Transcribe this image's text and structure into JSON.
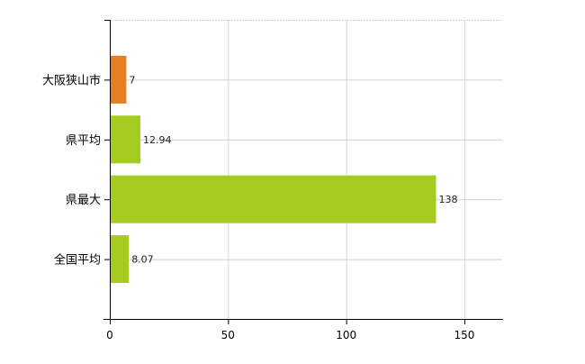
{
  "chart_data": {
    "type": "bar",
    "orientation": "horizontal",
    "categories": [
      "大阪狭山市",
      "県平均",
      "県最大",
      "全国平均"
    ],
    "values": [
      7,
      12.94,
      138,
      8.07
    ],
    "value_labels": [
      "7",
      "12.94",
      "138",
      "8.07"
    ],
    "colors": [
      "#e67e22",
      "#a5cc1e",
      "#a5cc1e",
      "#a5cc1e"
    ],
    "xlim": [
      0,
      166
    ],
    "xticks": [
      0,
      50,
      100,
      150
    ],
    "xtick_labels": [
      "0",
      "50",
      "100",
      "150"
    ],
    "grid": true,
    "title": "",
    "xlabel": "",
    "ylabel": ""
  }
}
